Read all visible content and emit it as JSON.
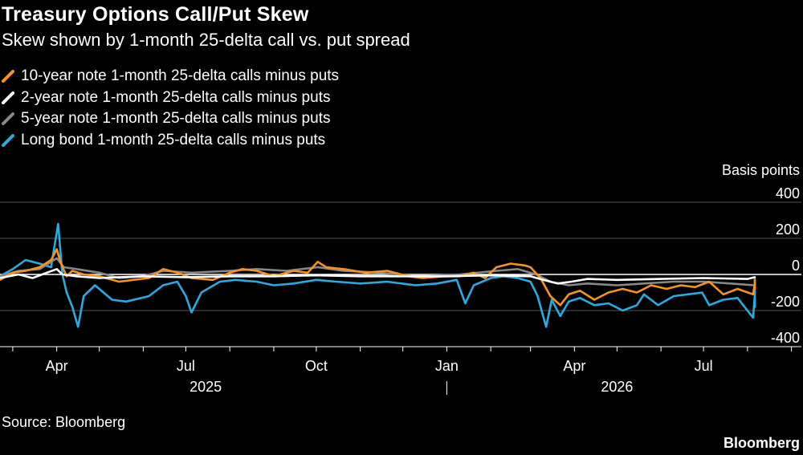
{
  "title": "Treasury Options Call/Put Skew",
  "subtitle": "Skew shown by 1-month 25-delta call vs. put spread",
  "source": "Source: Bloomberg",
  "brand": "Bloomberg",
  "chart_data": {
    "type": "line",
    "ylabel": "Basis points",
    "ylim": [
      -400,
      400
    ],
    "yticks": [
      400,
      200,
      0,
      -200,
      -400
    ],
    "xlim": [
      "2025-02-20",
      "2026-09-08"
    ],
    "x_month_ticks": [
      "2025-03-01",
      "2025-04-01",
      "2025-05-01",
      "2025-06-01",
      "2025-07-01",
      "2025-08-01",
      "2025-09-01",
      "2025-10-01",
      "2025-11-01",
      "2025-12-01",
      "2026-01-01",
      "2026-02-01",
      "2026-03-01",
      "2026-04-01",
      "2026-05-01",
      "2026-06-01",
      "2026-07-01",
      "2026-08-01",
      "2026-09-01"
    ],
    "x_labels": [
      {
        "date": "2025-04-01",
        "label": "Apr"
      },
      {
        "date": "2025-07-01",
        "label": "Jul"
      },
      {
        "date": "2025-10-01",
        "label": "Oct"
      },
      {
        "date": "2026-01-01",
        "label": "Jan"
      },
      {
        "date": "2026-04-01",
        "label": "Apr"
      },
      {
        "date": "2026-07-01",
        "label": "Jul"
      }
    ],
    "year_labels": [
      {
        "date": "2025-07-15",
        "label": "2025"
      },
      {
        "date": "2026-05-01",
        "label": "2026"
      }
    ],
    "year_divider": "2026-01-01",
    "grid": true,
    "legend": "top-left",
    "series": [
      {
        "name": "10-year note 1-month 25-delta calls minus puts",
        "color": "#f7931e",
        "points": [
          [
            "2025-02-20",
            -30
          ],
          [
            "2025-03-01",
            10
          ],
          [
            "2025-03-10",
            20
          ],
          [
            "2025-03-20",
            40
          ],
          [
            "2025-03-28",
            80
          ],
          [
            "2025-04-01",
            140
          ],
          [
            "2025-04-04",
            60
          ],
          [
            "2025-04-08",
            -10
          ],
          [
            "2025-04-12",
            20
          ],
          [
            "2025-04-20",
            0
          ],
          [
            "2025-05-01",
            -10
          ],
          [
            "2025-05-15",
            -40
          ],
          [
            "2025-05-25",
            -30
          ],
          [
            "2025-06-05",
            -20
          ],
          [
            "2025-06-15",
            30
          ],
          [
            "2025-06-25",
            10
          ],
          [
            "2025-07-05",
            -20
          ],
          [
            "2025-07-20",
            -30
          ],
          [
            "2025-08-01",
            10
          ],
          [
            "2025-08-10",
            30
          ],
          [
            "2025-08-20",
            20
          ],
          [
            "2025-09-01",
            -10
          ],
          [
            "2025-09-15",
            20
          ],
          [
            "2025-09-25",
            10
          ],
          [
            "2025-10-02",
            70
          ],
          [
            "2025-10-08",
            40
          ],
          [
            "2025-10-20",
            30
          ],
          [
            "2025-11-05",
            10
          ],
          [
            "2025-11-20",
            20
          ],
          [
            "2025-12-05",
            -10
          ],
          [
            "2025-12-15",
            -20
          ],
          [
            "2025-12-30",
            -10
          ],
          [
            "2026-01-10",
            -10
          ],
          [
            "2026-01-20",
            10
          ],
          [
            "2026-01-28",
            -20
          ],
          [
            "2026-02-05",
            40
          ],
          [
            "2026-02-15",
            60
          ],
          [
            "2026-02-25",
            50
          ],
          [
            "2026-03-01",
            40
          ],
          [
            "2026-03-08",
            -20
          ],
          [
            "2026-03-15",
            -120
          ],
          [
            "2026-03-22",
            -170
          ],
          [
            "2026-03-28",
            -110
          ],
          [
            "2026-04-05",
            -90
          ],
          [
            "2026-04-15",
            -140
          ],
          [
            "2026-04-25",
            -100
          ],
          [
            "2026-05-05",
            -80
          ],
          [
            "2026-05-15",
            -100
          ],
          [
            "2026-05-25",
            -60
          ],
          [
            "2026-06-05",
            -80
          ],
          [
            "2026-06-15",
            -60
          ],
          [
            "2026-06-25",
            -70
          ],
          [
            "2026-07-05",
            -40
          ],
          [
            "2026-07-15",
            -110
          ],
          [
            "2026-07-25",
            -80
          ],
          [
            "2026-08-05",
            -110
          ],
          [
            "2026-08-15",
            -50
          ],
          [
            "2026-08-25",
            -80
          ],
          [
            "2026-09-02",
            -30
          ]
        ]
      },
      {
        "name": "2-year note 1-month 25-delta calls minus puts",
        "color": "#ffffff",
        "points": [
          [
            "2025-02-20",
            -20
          ],
          [
            "2025-03-05",
            0
          ],
          [
            "2025-03-15",
            -20
          ],
          [
            "2025-03-25",
            10
          ],
          [
            "2025-04-01",
            30
          ],
          [
            "2025-04-05",
            0
          ],
          [
            "2025-04-15",
            -10
          ],
          [
            "2025-05-01",
            -20
          ],
          [
            "2025-06-01",
            -10
          ],
          [
            "2025-07-01",
            -15
          ],
          [
            "2025-08-01",
            -10
          ],
          [
            "2025-09-01",
            -10
          ],
          [
            "2025-10-01",
            -5
          ],
          [
            "2025-11-01",
            -10
          ],
          [
            "2025-12-01",
            -10
          ],
          [
            "2026-01-01",
            -10
          ],
          [
            "2026-02-01",
            -5
          ],
          [
            "2026-03-01",
            -10
          ],
          [
            "2026-03-10",
            -30
          ],
          [
            "2026-03-20",
            -50
          ],
          [
            "2026-03-30",
            -40
          ],
          [
            "2026-04-10",
            -25
          ],
          [
            "2026-05-01",
            -30
          ],
          [
            "2026-06-01",
            -25
          ],
          [
            "2026-07-01",
            -20
          ],
          [
            "2026-08-01",
            -25
          ],
          [
            "2026-09-02",
            -15
          ]
        ]
      },
      {
        "name": "5-year note 1-month 25-delta calls minus puts",
        "color": "#888888",
        "points": [
          [
            "2025-02-20",
            -10
          ],
          [
            "2025-03-05",
            20
          ],
          [
            "2025-03-20",
            30
          ],
          [
            "2025-04-01",
            90
          ],
          [
            "2025-04-06",
            40
          ],
          [
            "2025-04-15",
            30
          ],
          [
            "2025-05-01",
            10
          ],
          [
            "2025-05-15",
            -20
          ],
          [
            "2025-06-01",
            -10
          ],
          [
            "2025-06-15",
            20
          ],
          [
            "2025-07-05",
            10
          ],
          [
            "2025-08-01",
            20
          ],
          [
            "2025-08-20",
            30
          ],
          [
            "2025-09-10",
            20
          ],
          [
            "2025-10-02",
            40
          ],
          [
            "2025-10-20",
            20
          ],
          [
            "2025-11-15",
            10
          ],
          [
            "2025-12-10",
            -10
          ],
          [
            "2026-01-10",
            0
          ],
          [
            "2026-02-05",
            20
          ],
          [
            "2026-02-20",
            30
          ],
          [
            "2026-03-05",
            0
          ],
          [
            "2026-03-15",
            -40
          ],
          [
            "2026-03-28",
            -60
          ],
          [
            "2026-04-10",
            -50
          ],
          [
            "2026-05-01",
            -60
          ],
          [
            "2026-05-20",
            -50
          ],
          [
            "2026-06-10",
            -40
          ],
          [
            "2026-07-01",
            -40
          ],
          [
            "2026-07-20",
            -50
          ],
          [
            "2026-08-10",
            -60
          ],
          [
            "2026-09-02",
            -20
          ]
        ]
      },
      {
        "name": "Long bond 1-month 25-delta calls minus puts",
        "color": "#29abe2",
        "points": [
          [
            "2025-02-20",
            -10
          ],
          [
            "2025-03-01",
            30
          ],
          [
            "2025-03-10",
            80
          ],
          [
            "2025-03-20",
            60
          ],
          [
            "2025-03-28",
            40
          ],
          [
            "2025-04-02",
            280
          ],
          [
            "2025-04-05",
            0
          ],
          [
            "2025-04-08",
            -100
          ],
          [
            "2025-04-12",
            -180
          ],
          [
            "2025-04-16",
            -290
          ],
          [
            "2025-04-20",
            -120
          ],
          [
            "2025-04-28",
            -60
          ],
          [
            "2025-05-10",
            -140
          ],
          [
            "2025-05-20",
            -150
          ],
          [
            "2025-06-05",
            -120
          ],
          [
            "2025-06-15",
            -60
          ],
          [
            "2025-06-25",
            -40
          ],
          [
            "2025-07-01",
            -120
          ],
          [
            "2025-07-05",
            -210
          ],
          [
            "2025-07-12",
            -100
          ],
          [
            "2025-07-25",
            -40
          ],
          [
            "2025-08-05",
            -30
          ],
          [
            "2025-08-20",
            -40
          ],
          [
            "2025-09-01",
            -60
          ],
          [
            "2025-09-15",
            -50
          ],
          [
            "2025-10-01",
            -30
          ],
          [
            "2025-10-15",
            -40
          ],
          [
            "2025-11-01",
            -50
          ],
          [
            "2025-11-20",
            -40
          ],
          [
            "2025-12-10",
            -60
          ],
          [
            "2025-12-25",
            -50
          ],
          [
            "2026-01-08",
            -30
          ],
          [
            "2026-01-14",
            -160
          ],
          [
            "2026-01-20",
            -60
          ],
          [
            "2026-02-01",
            -20
          ],
          [
            "2026-02-10",
            -10
          ],
          [
            "2026-02-20",
            -20
          ],
          [
            "2026-03-01",
            -40
          ],
          [
            "2026-03-06",
            -120
          ],
          [
            "2026-03-12",
            -290
          ],
          [
            "2026-03-16",
            -140
          ],
          [
            "2026-03-22",
            -230
          ],
          [
            "2026-03-28",
            -150
          ],
          [
            "2026-04-05",
            -130
          ],
          [
            "2026-04-15",
            -170
          ],
          [
            "2026-04-25",
            -160
          ],
          [
            "2026-05-05",
            -200
          ],
          [
            "2026-05-15",
            -170
          ],
          [
            "2026-05-20",
            -110
          ],
          [
            "2026-05-30",
            -170
          ],
          [
            "2026-06-10",
            -120
          ],
          [
            "2026-06-20",
            -110
          ],
          [
            "2026-06-30",
            -100
          ],
          [
            "2026-07-05",
            -170
          ],
          [
            "2026-07-15",
            -140
          ],
          [
            "2026-07-25",
            -130
          ],
          [
            "2026-08-05",
            -240
          ],
          [
            "2026-08-10",
            -110
          ],
          [
            "2026-08-18",
            -180
          ],
          [
            "2026-08-25",
            -140
          ],
          [
            "2026-09-02",
            -40
          ]
        ]
      }
    ]
  }
}
